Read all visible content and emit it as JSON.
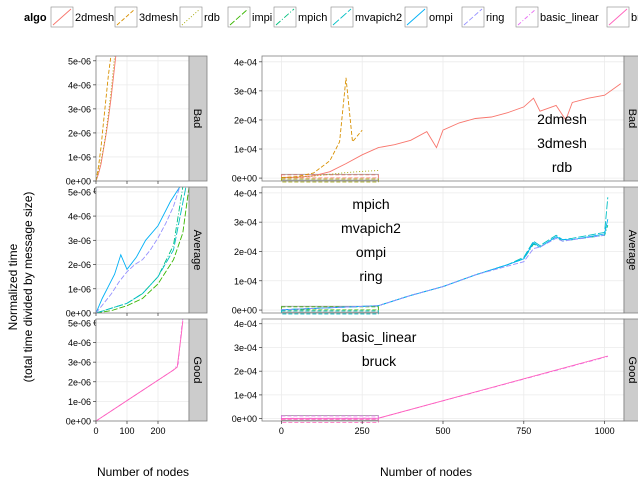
{
  "legend": {
    "title": "algo",
    "position": "top",
    "items": [
      {
        "label": "2dmesh",
        "color": "#F8766D",
        "dash": "solid"
      },
      {
        "label": "3dmesh",
        "color": "#D89000",
        "dash": "4,2"
      },
      {
        "label": "rdb",
        "color": "#A3A500",
        "dash": "1,2"
      },
      {
        "label": "impi",
        "color": "#39B600",
        "dash": "6,2"
      },
      {
        "label": "mpich",
        "color": "#00BF7D",
        "dash": "6,2,1,2"
      },
      {
        "label": "mvapich2",
        "color": "#00BFC4",
        "dash": "8,2"
      },
      {
        "label": "ompi",
        "color": "#00B0F6",
        "dash": "solid"
      },
      {
        "label": "ring",
        "color": "#9590FF",
        "dash": "5,2"
      },
      {
        "label": "basic_linear",
        "color": "#E76BF3",
        "dash": "4,2,1,2"
      },
      {
        "label": "bruck",
        "color": "#FF62BC",
        "dash": "solid"
      }
    ]
  },
  "axes": {
    "ylabel_line1": "Normalized time",
    "ylabel_line2": "(total time divided by message size)",
    "xlabel": "Number of nodes"
  },
  "facets": {
    "rows": [
      "Bad",
      "Average",
      "Good"
    ],
    "right_row_labels": [
      "Bad",
      "Average",
      "Good"
    ]
  },
  "annotations": {
    "bad": [
      "2dmesh",
      "3dmesh",
      "rdb"
    ],
    "average": [
      "mpich",
      "mvapich2",
      "ompi",
      "ring"
    ],
    "good": [
      "basic_linear",
      "bruck"
    ]
  },
  "chart_data": [
    {
      "type": "line",
      "panel": "left",
      "row": "Bad",
      "xlim": [
        0,
        300
      ],
      "ylim": [
        0,
        5.2e-06
      ],
      "x_ticks": [
        "0",
        "100",
        "200"
      ],
      "x_tick_values": [
        0,
        100,
        200
      ],
      "y_ticks": [
        "0e+00",
        "1e-06",
        "2e-06",
        "3e-06",
        "4e-06",
        "5e-06"
      ],
      "y_tick_values": [
        0,
        1e-06,
        2e-06,
        3e-06,
        4e-06,
        5e-06
      ],
      "series": [
        {
          "name": "2dmesh",
          "x": [
            0,
            8,
            16,
            24,
            32,
            40,
            48,
            56,
            64
          ],
          "y": [
            0,
            3e-07,
            7e-07,
            1.3e-06,
            1.9e-06,
            2.6e-06,
            3.4e-06,
            4.3e-06,
            5.2e-06
          ]
        },
        {
          "name": "3dmesh",
          "x": [
            0,
            8,
            16,
            24,
            32,
            40,
            48
          ],
          "y": [
            0,
            6e-07,
            1.4e-06,
            2.4e-06,
            3.4e-06,
            4.4e-06,
            5.2e-06
          ]
        },
        {
          "name": "rdb",
          "x": [
            0,
            10,
            20,
            30,
            40,
            50,
            60
          ],
          "y": [
            0,
            5e-07,
            1.1e-06,
            1.8e-06,
            2.8e-06,
            3.9e-06,
            5.2e-06
          ]
        }
      ]
    },
    {
      "type": "line",
      "panel": "right",
      "row": "Bad",
      "xlim": [
        -60,
        1060
      ],
      "ylim": [
        -1e-05,
        0.00042
      ],
      "y_ticks": [
        "0e+00",
        "1e-04",
        "2e-04",
        "3e-04",
        "4e-04"
      ],
      "y_tick_values": [
        0,
        0.0001,
        0.0002,
        0.0003,
        0.0004
      ],
      "series": [
        {
          "name": "2dmesh",
          "x": [
            0,
            50,
            100,
            150,
            200,
            250,
            300,
            350,
            400,
            450,
            480,
            500,
            550,
            600,
            650,
            700,
            750,
            780,
            800,
            850,
            880,
            900,
            950,
            1000,
            1050
          ],
          "y": [
            2e-06,
            3e-06,
            8e-06,
            2.2e-05,
            5e-05,
            8e-05,
            0.000105,
            0.000115,
            0.00013,
            0.00016,
            0.000105,
            0.000165,
            0.00019,
            0.000205,
            0.00021,
            0.000225,
            0.000245,
            0.000275,
            0.00023,
            0.00025,
            0.0002,
            0.00026,
            0.000275,
            0.000285,
            0.000325
          ]
        },
        {
          "name": "3dmesh",
          "x": [
            0,
            50,
            100,
            150,
            180,
            200,
            220,
            250
          ],
          "y": [
            2e-06,
            5e-06,
            1.8e-05,
            6e-05,
            0.000125,
            0.000345,
            0.000125,
            0.000165
          ]
        },
        {
          "name": "rdb",
          "x": [
            0,
            50,
            100,
            150,
            200,
            250,
            300
          ],
          "y": [
            1e-06,
            3e-06,
            7e-06,
            1.3e-05,
            1.9e-05,
            2.3e-05,
            2.6e-05
          ]
        }
      ]
    },
    {
      "type": "line",
      "panel": "left",
      "row": "Average",
      "xlim": [
        0,
        300
      ],
      "ylim": [
        0,
        5.2e-06
      ],
      "x_ticks": [
        "0",
        "100",
        "200"
      ],
      "x_tick_values": [
        0,
        100,
        200
      ],
      "y_ticks": [
        "0e+00",
        "1e-06",
        "2e-06",
        "3e-06",
        "4e-06",
        "5e-06"
      ],
      "y_tick_values": [
        0,
        1e-06,
        2e-06,
        3e-06,
        4e-06,
        5e-06
      ],
      "series": [
        {
          "name": "impi",
          "x": [
            0,
            50,
            100,
            150,
            200,
            250,
            280,
            300
          ],
          "y": [
            0,
            1e-07,
            3e-07,
            6e-07,
            1.2e-06,
            2.2e-06,
            3.3e-06,
            5.2e-06
          ]
        },
        {
          "name": "mpich",
          "x": [
            0,
            50,
            100,
            150,
            200,
            250,
            280
          ],
          "y": [
            0,
            2e-07,
            4e-07,
            8e-07,
            1.5e-06,
            2.8e-06,
            5.2e-06
          ]
        },
        {
          "name": "mvapich2",
          "x": [
            0,
            50,
            100,
            150,
            200,
            250,
            290
          ],
          "y": [
            0,
            2e-07,
            4e-07,
            8e-07,
            1.5e-06,
            2.6e-06,
            5.2e-06
          ]
        },
        {
          "name": "ompi",
          "x": [
            0,
            20,
            40,
            60,
            80,
            100,
            130,
            160,
            200,
            240,
            270
          ],
          "y": [
            0,
            6e-07,
            1.1e-06,
            1.6e-06,
            2.4e-06,
            1.8e-06,
            2.3e-06,
            3e-06,
            3.6e-06,
            4.6e-06,
            5.2e-06
          ]
        },
        {
          "name": "ring",
          "x": [
            0,
            25,
            50,
            75,
            100,
            125,
            150,
            175,
            200,
            225,
            250,
            270
          ],
          "y": [
            0,
            4e-07,
            8e-07,
            1.3e-06,
            1.7e-06,
            2e-06,
            2.2e-06,
            2.6e-06,
            3.1e-06,
            3.7e-06,
            4.4e-06,
            5.2e-06
          ]
        }
      ]
    },
    {
      "type": "line",
      "panel": "right",
      "row": "Average",
      "xlim": [
        -60,
        1060
      ],
      "ylim": [
        -1e-05,
        0.00042
      ],
      "y_ticks": [
        "0e+00",
        "1e-04",
        "2e-04",
        "3e-04",
        "4e-04"
      ],
      "y_tick_values": [
        0,
        0.0001,
        0.0002,
        0.0003,
        0.0004
      ],
      "series": [
        {
          "name": "mpich",
          "x": [
            0,
            300,
            400,
            500,
            600,
            700,
            750,
            780,
            800,
            850,
            870,
            900,
            1000,
            1010
          ],
          "y": [
            1e-06,
            1.5e-05,
            5e-05,
            8e-05,
            0.00012,
            0.000155,
            0.000175,
            0.000225,
            0.000215,
            0.00025,
            0.000235,
            0.00024,
            0.000255,
            0.00029
          ]
        },
        {
          "name": "mvapich2",
          "x": [
            0,
            300,
            400,
            500,
            600,
            700,
            750,
            780,
            800,
            850,
            870,
            900,
            1000,
            1010
          ],
          "y": [
            1e-06,
            1.5e-05,
            5e-05,
            8e-05,
            0.00012,
            0.000155,
            0.00018,
            0.000235,
            0.00022,
            0.000255,
            0.00024,
            0.000245,
            0.000265,
            0.000385
          ]
        },
        {
          "name": "ompi",
          "x": [
            0,
            300,
            400,
            500,
            600,
            700,
            750,
            780,
            800,
            850,
            870,
            900,
            1000,
            1010
          ],
          "y": [
            1e-06,
            1.5e-05,
            5e-05,
            8e-05,
            0.00012,
            0.000155,
            0.000175,
            0.00023,
            0.000215,
            0.00025,
            0.00024,
            0.00024,
            0.00026,
            0.00031
          ]
        },
        {
          "name": "ring",
          "x": [
            0,
            300,
            400,
            500,
            600,
            700,
            750,
            780,
            800,
            850,
            870,
            900,
            1000
          ],
          "y": [
            1e-06,
            1.5e-05,
            5e-05,
            8e-05,
            0.00012,
            0.00015,
            0.000165,
            0.00021,
            0.000215,
            0.000245,
            0.000235,
            0.00024,
            0.000255
          ]
        }
      ]
    },
    {
      "type": "line",
      "panel": "left",
      "row": "Good",
      "xlim": [
        0,
        300
      ],
      "ylim": [
        0,
        5.2e-06
      ],
      "x_ticks": [
        "0",
        "100",
        "200"
      ],
      "x_tick_values": [
        0,
        100,
        200
      ],
      "y_ticks": [
        "0e+00",
        "1e-06",
        "2e-06",
        "3e-06",
        "4e-06",
        "5e-06"
      ],
      "y_tick_values": [
        0,
        1e-06,
        2e-06,
        3e-06,
        4e-06,
        5e-06
      ],
      "series": [
        {
          "name": "basic_linear",
          "x": [
            0,
            250,
            265,
            275,
            280
          ],
          "y": [
            0,
            2.6e-06,
            2.9e-06,
            4.6e-06,
            5.2e-06
          ]
        },
        {
          "name": "bruck",
          "x": [
            0,
            250,
            262,
            275,
            280
          ],
          "y": [
            0,
            2.6e-06,
            2.75e-06,
            4.4e-06,
            5.1e-06
          ]
        }
      ]
    },
    {
      "type": "line",
      "panel": "right",
      "row": "Good",
      "xlim": [
        -60,
        1060
      ],
      "ylim": [
        -1e-05,
        0.00042
      ],
      "x_ticks": [
        "0",
        "250",
        "500",
        "750",
        "1000"
      ],
      "x_tick_values": [
        0,
        250,
        500,
        750,
        1000
      ],
      "y_ticks": [
        "0e+00",
        "1e-04",
        "2e-04",
        "3e-04",
        "4e-04"
      ],
      "y_tick_values": [
        0,
        0.0001,
        0.0002,
        0.0003,
        0.0004
      ],
      "series": [
        {
          "name": "basic_linear",
          "x": [
            0,
            300,
            1010
          ],
          "y": [
            1e-06,
            2e-06,
            0.000262
          ]
        },
        {
          "name": "bruck",
          "x": [
            0,
            300,
            1010
          ],
          "y": [
            1e-06,
            2e-06,
            0.000264
          ]
        }
      ]
    }
  ]
}
